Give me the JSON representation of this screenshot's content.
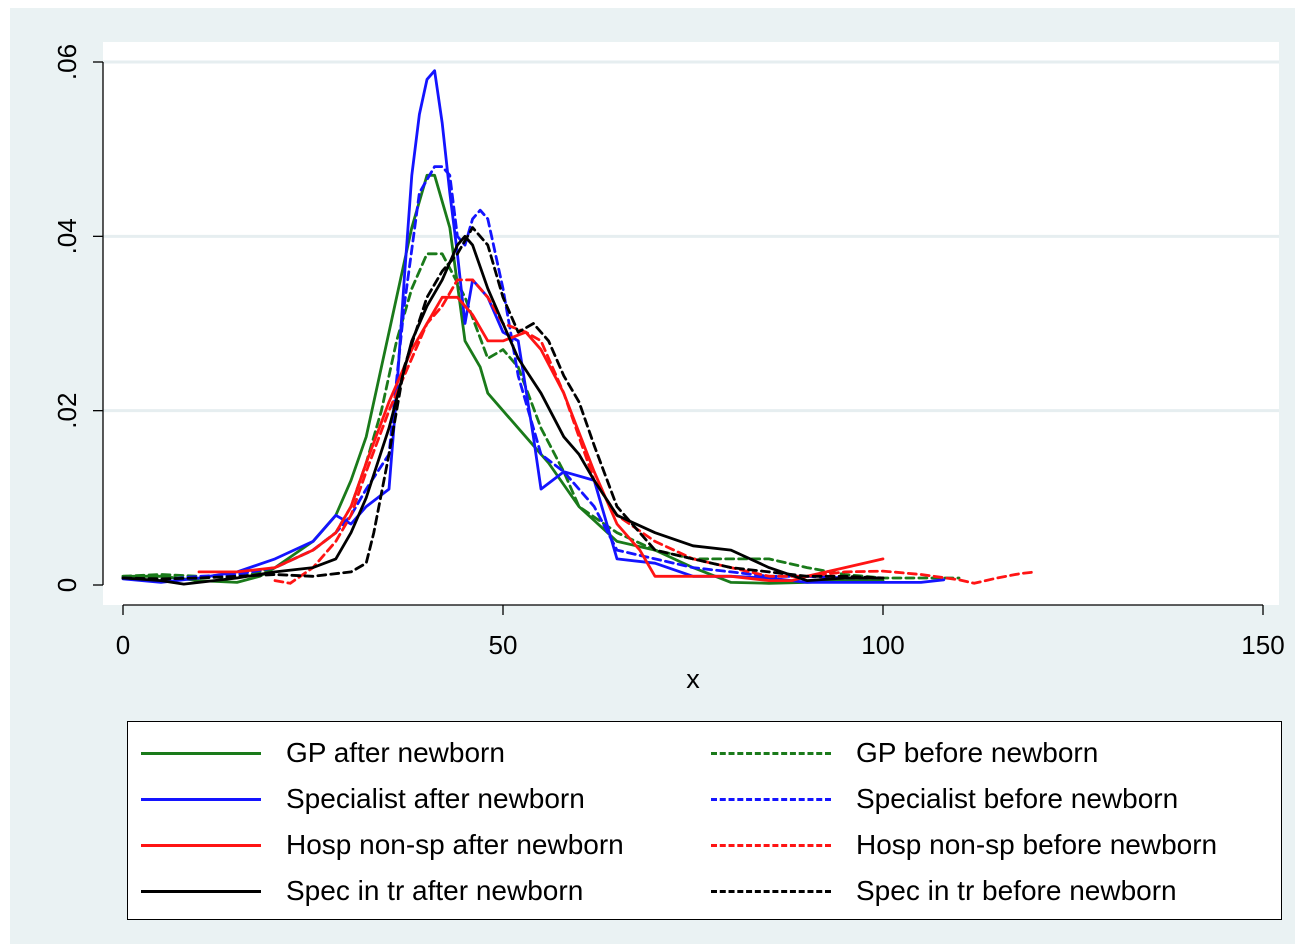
{
  "chart_data": {
    "type": "line",
    "xlabel": "x",
    "ylabel": "",
    "xlim": [
      0,
      150
    ],
    "ylim": [
      0,
      0.06
    ],
    "x_ticks": [
      0,
      50,
      100,
      150
    ],
    "x_tick_labels": [
      "0",
      "50",
      "100",
      "150"
    ],
    "y_ticks": [
      0,
      0.02,
      0.04,
      0.06
    ],
    "y_tick_labels": [
      "0",
      ".02",
      ".04",
      ".06"
    ],
    "grid": "horizontal",
    "legend_position": "bottom",
    "series": [
      {
        "name": "GP after newborn",
        "color": "#1a7a1a",
        "dashed": false,
        "x": [
          0,
          5,
          10,
          15,
          18,
          20,
          25,
          28,
          30,
          32,
          34,
          36,
          38,
          40,
          41,
          43,
          45,
          47,
          48,
          50,
          53,
          56,
          60,
          65,
          70,
          75,
          80,
          85,
          90,
          95,
          100
        ],
        "y": [
          0.001,
          0.001,
          0.0005,
          0.0003,
          0.001,
          0.002,
          0.005,
          0.008,
          0.012,
          0.017,
          0.025,
          0.033,
          0.041,
          0.047,
          0.047,
          0.041,
          0.028,
          0.025,
          0.022,
          0.02,
          0.017,
          0.014,
          0.009,
          0.005,
          0.004,
          0.002,
          0.0003,
          0.0002,
          0.0003,
          0.0005,
          0.0005
        ]
      },
      {
        "name": "GP before newborn",
        "color": "#1a7a1a",
        "dashed": true,
        "x": [
          0,
          5,
          10,
          15,
          20,
          25,
          28,
          30,
          32,
          34,
          36,
          38,
          40,
          42,
          45,
          48,
          50,
          52,
          55,
          58,
          60,
          65,
          70,
          75,
          80,
          85,
          90,
          95,
          100,
          105,
          110
        ],
        "y": [
          0.001,
          0.0012,
          0.001,
          0.0008,
          0.002,
          0.004,
          0.006,
          0.009,
          0.014,
          0.02,
          0.028,
          0.034,
          0.038,
          0.038,
          0.033,
          0.026,
          0.027,
          0.025,
          0.018,
          0.013,
          0.009,
          0.006,
          0.004,
          0.003,
          0.003,
          0.003,
          0.002,
          0.0012,
          0.0008,
          0.0008,
          0.0008
        ]
      },
      {
        "name": "Specialist after newborn",
        "color": "#1414ff",
        "dashed": false,
        "x": [
          0,
          5,
          10,
          15,
          20,
          25,
          28,
          30,
          32,
          35,
          36,
          37,
          38,
          39,
          40,
          41,
          42,
          43,
          44,
          45,
          46,
          47,
          48,
          50,
          52,
          54,
          55,
          58,
          62,
          65,
          70,
          75,
          80,
          85,
          90,
          95,
          100,
          105,
          108
        ],
        "y": [
          0.0007,
          0.0003,
          0.0008,
          0.0015,
          0.003,
          0.005,
          0.008,
          0.007,
          0.009,
          0.011,
          0.022,
          0.035,
          0.047,
          0.054,
          0.058,
          0.059,
          0.053,
          0.045,
          0.038,
          0.03,
          0.035,
          0.034,
          0.033,
          0.029,
          0.028,
          0.017,
          0.011,
          0.013,
          0.012,
          0.003,
          0.0025,
          0.001,
          0.001,
          0.0008,
          0.0003,
          0.0003,
          0.0003,
          0.0003,
          0.0006
        ]
      },
      {
        "name": "Specialist before newborn",
        "color": "#1414ff",
        "dashed": true,
        "x": [
          0,
          5,
          10,
          15,
          20,
          25,
          28,
          30,
          32,
          35,
          37,
          39,
          41,
          42,
          43,
          44,
          45,
          46,
          47,
          48,
          50,
          52,
          55,
          58,
          62,
          65,
          70,
          75,
          80,
          85,
          90,
          95,
          100
        ],
        "y": [
          0.0008,
          0.0006,
          0.001,
          0.0012,
          0.002,
          0.004,
          0.006,
          0.008,
          0.011,
          0.015,
          0.032,
          0.045,
          0.048,
          0.048,
          0.047,
          0.04,
          0.039,
          0.042,
          0.043,
          0.042,
          0.034,
          0.024,
          0.015,
          0.013,
          0.009,
          0.004,
          0.003,
          0.002,
          0.0015,
          0.001,
          0.001,
          0.0008,
          0.0008
        ]
      },
      {
        "name": "Hosp non-sp after newborn",
        "color": "#ff1414",
        "dashed": false,
        "x": [
          10,
          15,
          20,
          25,
          28,
          30,
          32,
          35,
          38,
          40,
          42,
          44,
          46,
          48,
          50,
          53,
          55,
          58,
          62,
          65,
          68,
          70,
          75,
          80,
          85,
          88,
          90,
          95,
          100
        ],
        "y": [
          0.0015,
          0.0015,
          0.002,
          0.004,
          0.006,
          0.009,
          0.014,
          0.021,
          0.027,
          0.03,
          0.033,
          0.033,
          0.031,
          0.028,
          0.028,
          0.029,
          0.027,
          0.022,
          0.013,
          0.007,
          0.004,
          0.001,
          0.001,
          0.001,
          0.0005,
          0.0005,
          0.001,
          0.002,
          0.003
        ]
      },
      {
        "name": "Hosp non-sp before newborn",
        "color": "#ff1414",
        "dashed": true,
        "x": [
          20,
          22,
          25,
          28,
          30,
          32,
          35,
          38,
          40,
          42,
          44,
          46,
          48,
          50,
          53,
          55,
          58,
          60,
          62,
          65,
          70,
          75,
          80,
          85,
          90,
          95,
          100,
          105,
          110,
          112,
          115,
          118,
          120
        ],
        "y": [
          0.0005,
          0.0002,
          0.002,
          0.005,
          0.008,
          0.013,
          0.02,
          0.026,
          0.03,
          0.032,
          0.035,
          0.035,
          0.033,
          0.03,
          0.029,
          0.028,
          0.022,
          0.017,
          0.012,
          0.008,
          0.005,
          0.003,
          0.002,
          0.001,
          0.001,
          0.0015,
          0.0016,
          0.0012,
          0.0006,
          0.0002,
          0.0008,
          0.0013,
          0.0015
        ]
      },
      {
        "name": "Spec in tr after newborn",
        "color": "#000000",
        "dashed": false,
        "x": [
          0,
          5,
          8,
          10,
          15,
          20,
          25,
          28,
          30,
          32,
          35,
          38,
          40,
          42,
          44,
          45,
          46,
          48,
          50,
          52,
          55,
          58,
          60,
          62,
          65,
          70,
          75,
          80,
          85,
          90,
          95,
          100
        ],
        "y": [
          0.0008,
          0.0005,
          0.0001,
          0.0003,
          0.0008,
          0.0015,
          0.002,
          0.003,
          0.006,
          0.01,
          0.018,
          0.028,
          0.032,
          0.035,
          0.039,
          0.04,
          0.039,
          0.034,
          0.03,
          0.026,
          0.022,
          0.017,
          0.015,
          0.012,
          0.008,
          0.006,
          0.0045,
          0.004,
          0.002,
          0.0005,
          0.0008,
          0.0008
        ]
      },
      {
        "name": "Spec in tr before newborn",
        "color": "#000000",
        "dashed": true,
        "x": [
          0,
          5,
          10,
          15,
          20,
          25,
          30,
          32,
          33,
          35,
          37,
          40,
          42,
          44,
          46,
          48,
          50,
          52,
          54,
          56,
          58,
          60,
          62,
          65,
          70,
          75,
          80,
          85,
          90,
          95,
          100
        ],
        "y": [
          0.0008,
          0.0007,
          0.0008,
          0.001,
          0.0012,
          0.001,
          0.0015,
          0.0025,
          0.006,
          0.015,
          0.025,
          0.033,
          0.036,
          0.038,
          0.041,
          0.039,
          0.033,
          0.029,
          0.03,
          0.028,
          0.024,
          0.021,
          0.016,
          0.009,
          0.004,
          0.003,
          0.002,
          0.0015,
          0.001,
          0.001,
          0.0008
        ]
      }
    ]
  }
}
